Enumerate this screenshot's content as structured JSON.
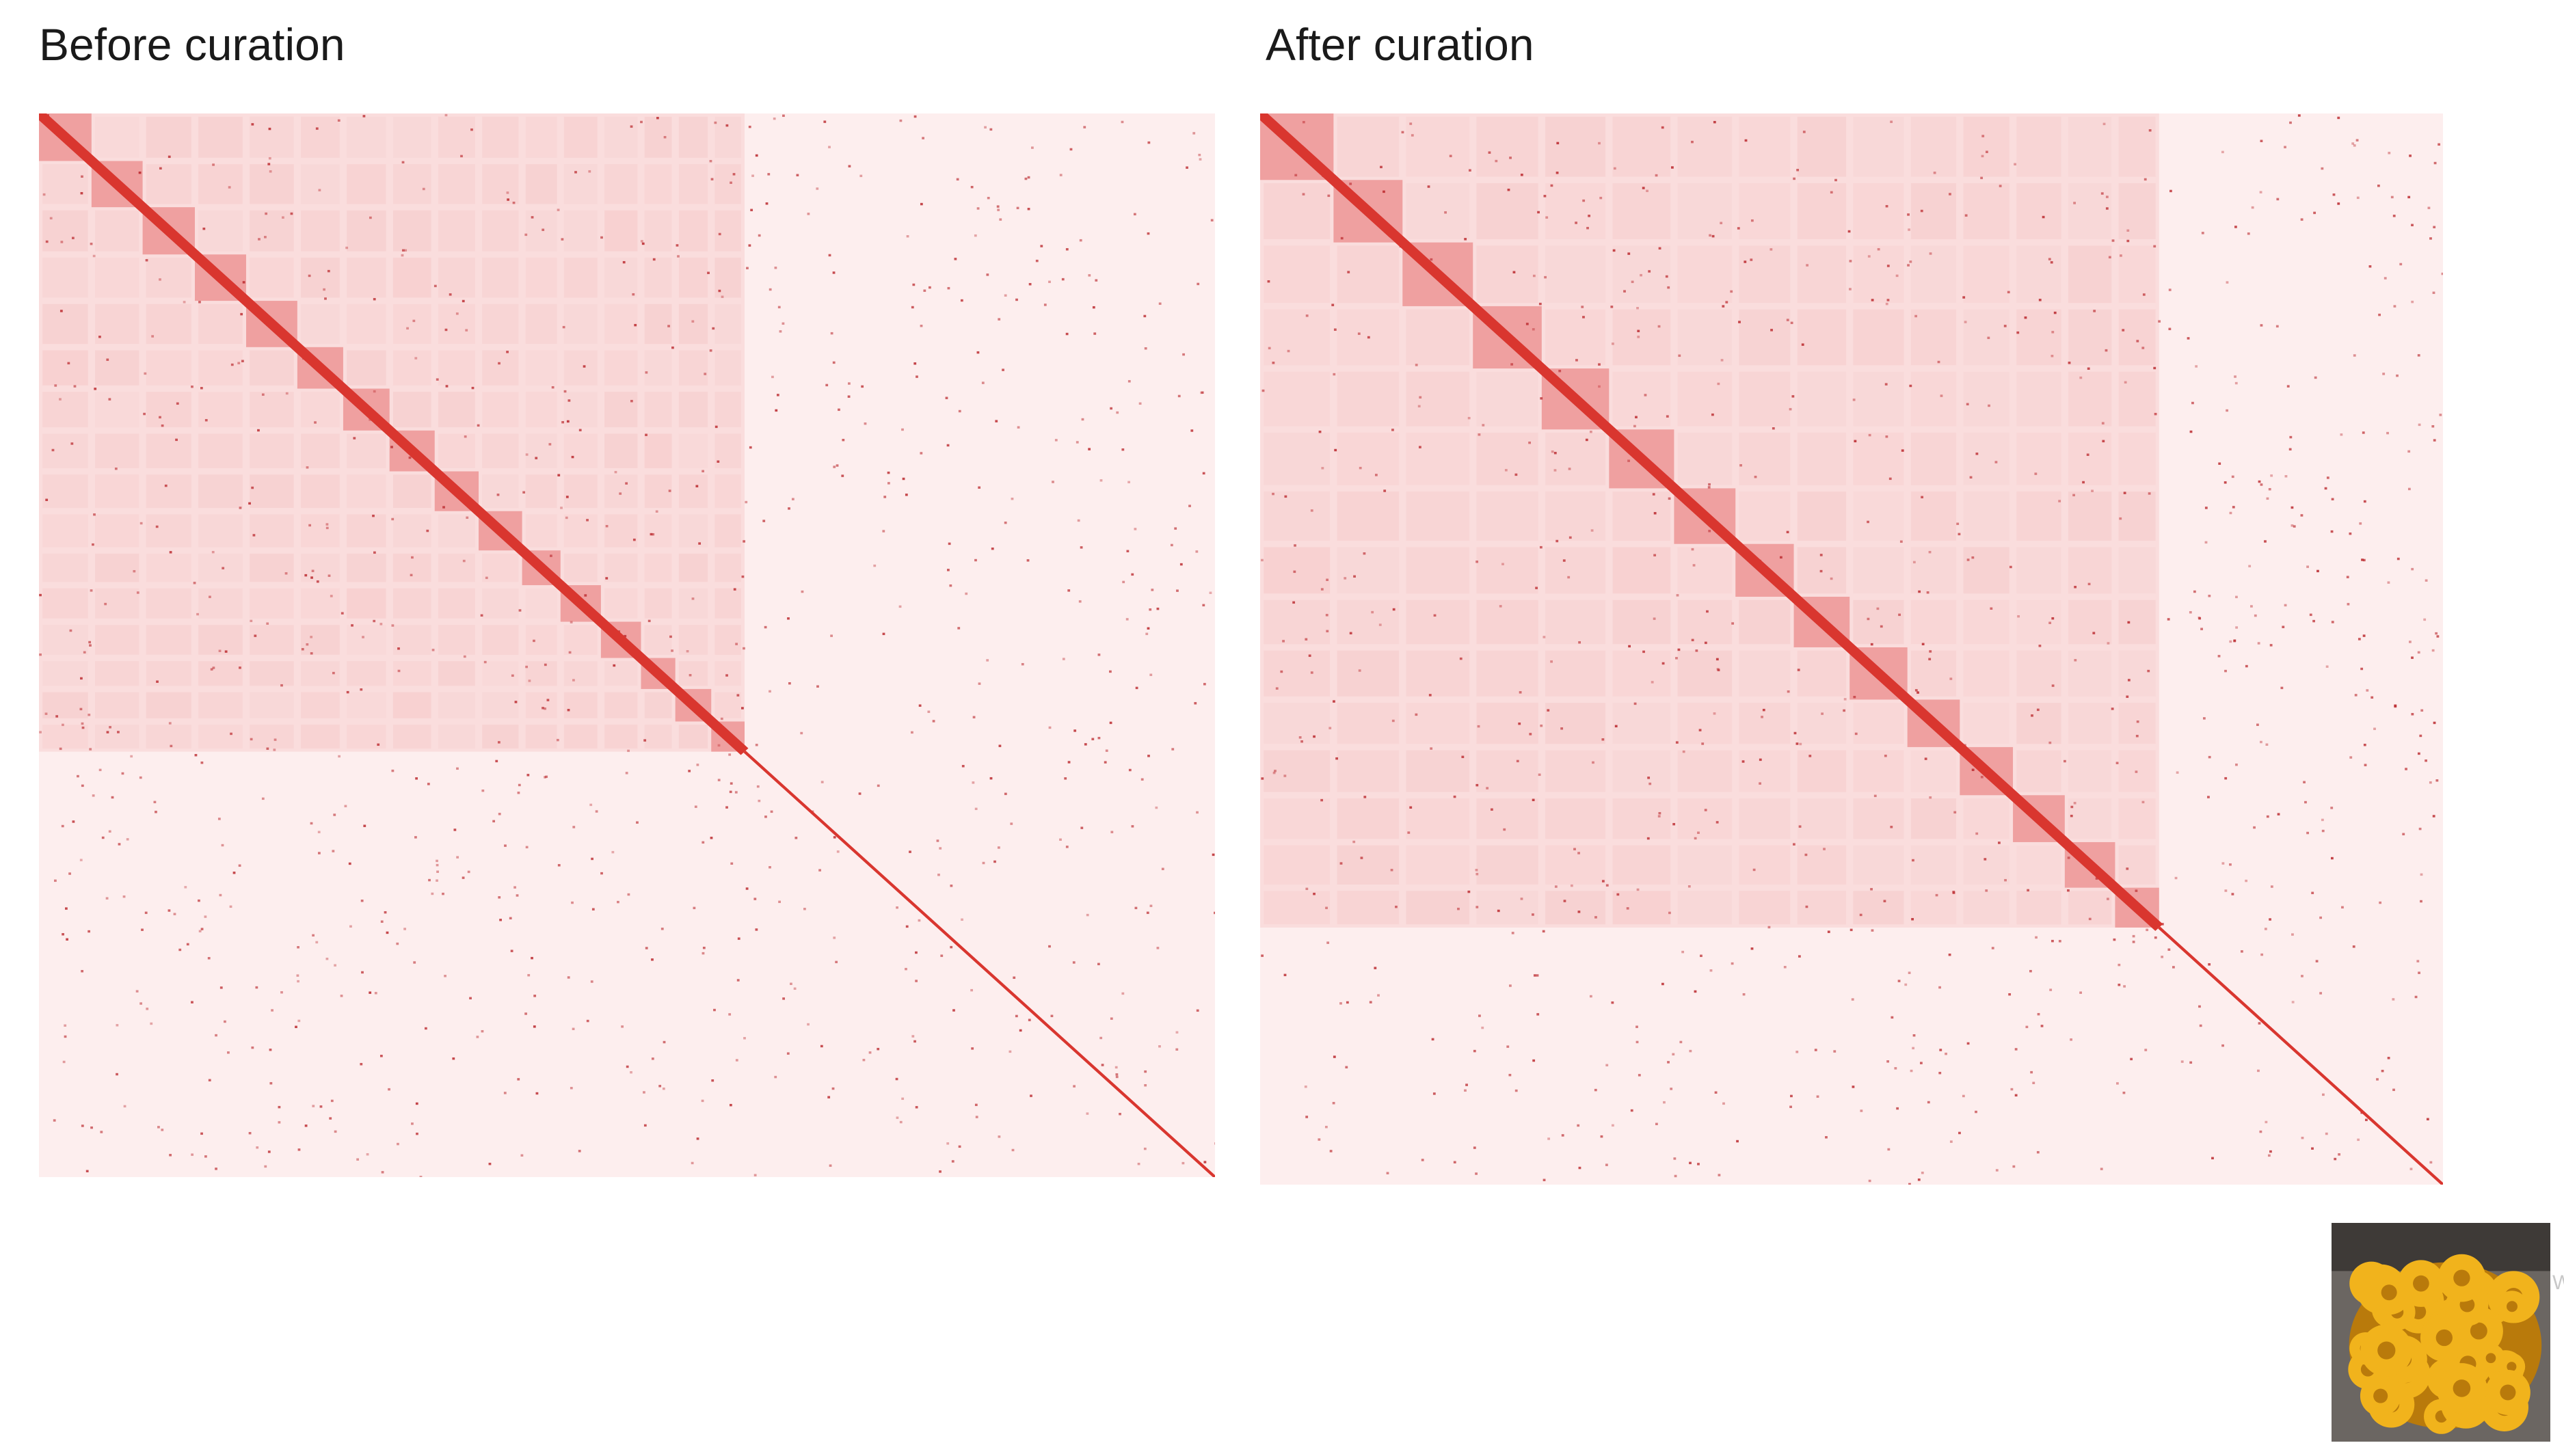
{
  "panels": {
    "before": {
      "title": "Before curation"
    },
    "after": {
      "title": "After curation"
    }
  },
  "contact_map": {
    "colors": {
      "background": "#fdeeee",
      "block": "#f3bcbc",
      "diagonal": "#d9362f",
      "speckle": "#b9252a"
    },
    "before": {
      "diagonal_blocks": 16,
      "scaffolded_fraction": 0.6
    },
    "after": {
      "diagonal_blocks": 15,
      "scaffolded_fraction": 0.76
    }
  },
  "thumbnail": {
    "subject": "yellow-zoanthid-coral-photo",
    "colors": {
      "polyp": "#f1b31c",
      "polyp_dark": "#b97a0b",
      "rock": "#6b6662"
    }
  },
  "edge_text": "W"
}
